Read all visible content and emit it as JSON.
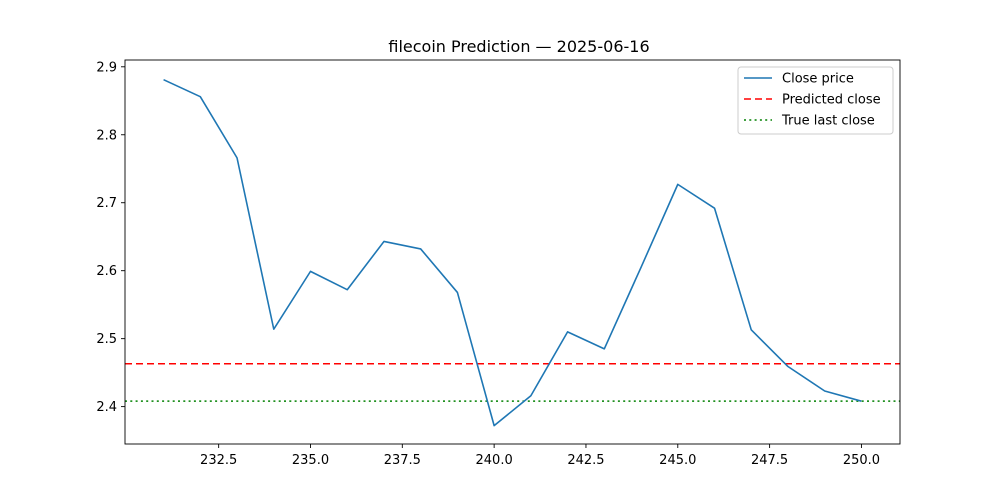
{
  "chart_data": {
    "type": "line",
    "title": "filecoin Prediction — 2025-06-16",
    "xlabel": "",
    "ylabel": "",
    "xlim": [
      229.95,
      251.05
    ],
    "ylim": [
      2.345,
      2.91
    ],
    "xticks": [
      232.5,
      235.0,
      237.5,
      240.0,
      242.5,
      245.0,
      247.5,
      250.0
    ],
    "xtick_labels": [
      "232.5",
      "235.0",
      "237.5",
      "240.0",
      "242.5",
      "245.0",
      "247.5",
      "250.0"
    ],
    "yticks": [
      2.4,
      2.5,
      2.6,
      2.7,
      2.8,
      2.9
    ],
    "ytick_labels": [
      "2.4",
      "2.5",
      "2.6",
      "2.7",
      "2.8",
      "2.9"
    ],
    "grid": false,
    "legend_position": "top-right",
    "series": [
      {
        "name": "Close price",
        "color": "#1f77b4",
        "style": "solid",
        "x": [
          231,
          232,
          233,
          234,
          235,
          236,
          237,
          238,
          239,
          240,
          241,
          242,
          243,
          244,
          245,
          246,
          247,
          248,
          249,
          250
        ],
        "y": [
          2.881,
          2.856,
          2.766,
          2.514,
          2.599,
          2.572,
          2.643,
          2.632,
          2.568,
          2.372,
          2.416,
          2.51,
          2.485,
          2.605,
          2.727,
          2.692,
          2.513,
          2.459,
          2.423,
          2.408
        ]
      }
    ],
    "hlines": [
      {
        "name": "Predicted close",
        "y": 2.463,
        "color": "#ff0000",
        "style": "dashed"
      },
      {
        "name": "True last close",
        "y": 2.408,
        "color": "#008000",
        "style": "dotted"
      }
    ]
  }
}
